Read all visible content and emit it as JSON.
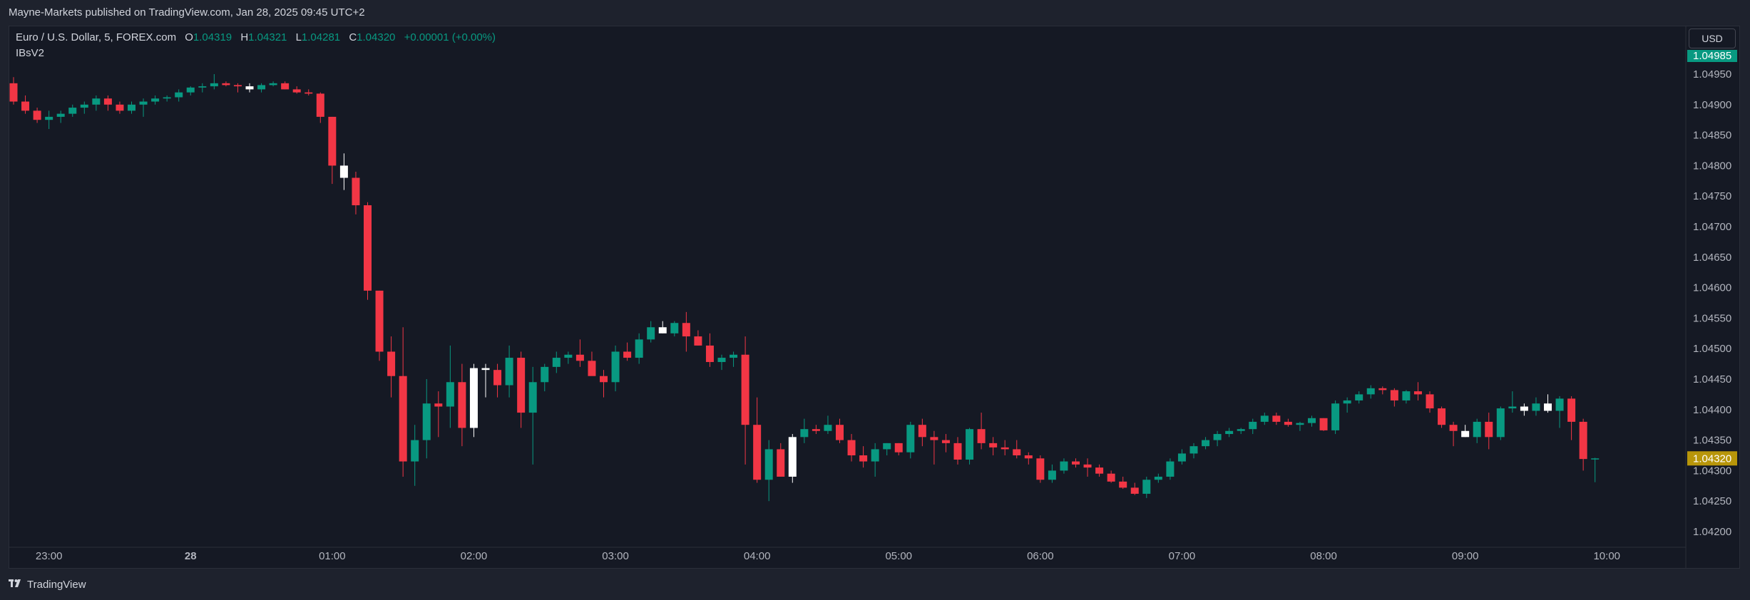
{
  "header": {
    "published": "Mayne-Markets published on TradingView.com, Jan 28, 2025 09:45 UTC+2"
  },
  "legend": {
    "symbol": "Euro / U.S. Dollar, 5, FOREX.com",
    "open_label": "O",
    "open": "1.04319",
    "high_label": "H",
    "high": "1.04321",
    "low_label": "L",
    "low": "1.04281",
    "close_label": "C",
    "close": "1.04320",
    "change": "+0.00001 (+0.00%)"
  },
  "indicator": "IBsV2",
  "currency_button": "USD",
  "footer": {
    "brand": "TradingView",
    "brand_icon": "tradingview-logo-icon"
  },
  "colors": {
    "up": "#089981",
    "down": "#f23645",
    "highlight": "#ffffff",
    "last_price_bg": "#b8960a",
    "top_marker_bg": "#089981"
  },
  "chart_data": {
    "type": "candlestick",
    "instrument": "EURUSD",
    "timeframe": "5",
    "ylim": [
      1.0419,
      1.05
    ],
    "y_ticks": [
      "1.04950",
      "1.04900",
      "1.04850",
      "1.04800",
      "1.04750",
      "1.04700",
      "1.04650",
      "1.04600",
      "1.04550",
      "1.04500",
      "1.04450",
      "1.04400",
      "1.04350",
      "1.04300",
      "1.04250",
      "1.04200"
    ],
    "y_tick_values": [
      1.0495,
      1.049,
      1.0485,
      1.048,
      1.0475,
      1.047,
      1.0465,
      1.046,
      1.0455,
      1.045,
      1.0445,
      1.044,
      1.0435,
      1.043,
      1.0425,
      1.042
    ],
    "x_ticks": [
      "23:00",
      "28",
      "01:00",
      "02:00",
      "03:00",
      "04:00",
      "05:00",
      "06:00",
      "07:00",
      "08:00",
      "09:00",
      "10:00"
    ],
    "x_tick_bar_index": [
      3,
      15,
      27,
      39,
      51,
      63,
      75,
      87,
      99,
      111,
      123,
      135
    ],
    "last_price_label": "1.04320",
    "top_marker_label": "1.04985",
    "candles": [
      {
        "o": 1.04935,
        "h": 1.04945,
        "l": 1.049,
        "c": 1.04905
      },
      {
        "o": 1.04905,
        "h": 1.04915,
        "l": 1.04885,
        "c": 1.0489
      },
      {
        "o": 1.0489,
        "h": 1.04895,
        "l": 1.0487,
        "c": 1.04875
      },
      {
        "o": 1.04875,
        "h": 1.0489,
        "l": 1.0486,
        "c": 1.0488
      },
      {
        "o": 1.0488,
        "h": 1.0489,
        "l": 1.0487,
        "c": 1.04885
      },
      {
        "o": 1.04885,
        "h": 1.049,
        "l": 1.0488,
        "c": 1.04895
      },
      {
        "o": 1.04895,
        "h": 1.04905,
        "l": 1.04885,
        "c": 1.049
      },
      {
        "o": 1.049,
        "h": 1.04915,
        "l": 1.0489,
        "c": 1.0491
      },
      {
        "o": 1.0491,
        "h": 1.04915,
        "l": 1.0489,
        "c": 1.049
      },
      {
        "o": 1.049,
        "h": 1.04905,
        "l": 1.04885,
        "c": 1.0489
      },
      {
        "o": 1.0489,
        "h": 1.04905,
        "l": 1.04885,
        "c": 1.049
      },
      {
        "o": 1.049,
        "h": 1.0491,
        "l": 1.0488,
        "c": 1.04905
      },
      {
        "o": 1.04905,
        "h": 1.04915,
        "l": 1.049,
        "c": 1.0491
      },
      {
        "o": 1.0491,
        "h": 1.04915,
        "l": 1.04905,
        "c": 1.04912
      },
      {
        "o": 1.04912,
        "h": 1.04925,
        "l": 1.04905,
        "c": 1.0492
      },
      {
        "o": 1.0492,
        "h": 1.0493,
        "l": 1.04915,
        "c": 1.04928
      },
      {
        "o": 1.04928,
        "h": 1.04935,
        "l": 1.0492,
        "c": 1.0493
      },
      {
        "o": 1.0493,
        "h": 1.0495,
        "l": 1.04925,
        "c": 1.04935
      },
      {
        "o": 1.04935,
        "h": 1.04938,
        "l": 1.0493,
        "c": 1.04932
      },
      {
        "o": 1.04932,
        "h": 1.04935,
        "l": 1.0492,
        "c": 1.0493
      },
      {
        "o": 1.0493,
        "h": 1.04935,
        "l": 1.0492,
        "c": 1.04925,
        "hl": true
      },
      {
        "o": 1.04925,
        "h": 1.04935,
        "l": 1.0492,
        "c": 1.04932
      },
      {
        "o": 1.04932,
        "h": 1.04938,
        "l": 1.0493,
        "c": 1.04935
      },
      {
        "o": 1.04935,
        "h": 1.04938,
        "l": 1.04925,
        "c": 1.04925
      },
      {
        "o": 1.04925,
        "h": 1.0493,
        "l": 1.04918,
        "c": 1.0492
      },
      {
        "o": 1.0492,
        "h": 1.04925,
        "l": 1.04915,
        "c": 1.04918
      },
      {
        "o": 1.04918,
        "h": 1.0492,
        "l": 1.0487,
        "c": 1.0488
      },
      {
        "o": 1.0488,
        "h": 1.0488,
        "l": 1.0477,
        "c": 1.048
      },
      {
        "o": 1.048,
        "h": 1.0482,
        "l": 1.0476,
        "c": 1.0478,
        "hl": true
      },
      {
        "o": 1.0478,
        "h": 1.0479,
        "l": 1.0472,
        "c": 1.04735
      },
      {
        "o": 1.04735,
        "h": 1.0474,
        "l": 1.0458,
        "c": 1.04595
      },
      {
        "o": 1.04595,
        "h": 1.04595,
        "l": 1.0448,
        "c": 1.04495
      },
      {
        "o": 1.04495,
        "h": 1.0452,
        "l": 1.0442,
        "c": 1.04455
      },
      {
        "o": 1.04455,
        "h": 1.04535,
        "l": 1.0429,
        "c": 1.04315
      },
      {
        "o": 1.04315,
        "h": 1.04375,
        "l": 1.04275,
        "c": 1.0435
      },
      {
        "o": 1.0435,
        "h": 1.0445,
        "l": 1.0432,
        "c": 1.0441
      },
      {
        "o": 1.0441,
        "h": 1.0443,
        "l": 1.04355,
        "c": 1.04405
      },
      {
        "o": 1.04405,
        "h": 1.04505,
        "l": 1.0437,
        "c": 1.04445
      },
      {
        "o": 1.04445,
        "h": 1.04475,
        "l": 1.0434,
        "c": 1.0437
      },
      {
        "o": 1.0437,
        "h": 1.04475,
        "l": 1.04355,
        "c": 1.04468,
        "hl": true
      },
      {
        "o": 1.04468,
        "h": 1.04475,
        "l": 1.0442,
        "c": 1.04465,
        "hl": true
      },
      {
        "o": 1.04465,
        "h": 1.04475,
        "l": 1.0442,
        "c": 1.0444
      },
      {
        "o": 1.0444,
        "h": 1.04505,
        "l": 1.0442,
        "c": 1.04485
      },
      {
        "o": 1.04485,
        "h": 1.04495,
        "l": 1.0437,
        "c": 1.04395
      },
      {
        "o": 1.04395,
        "h": 1.0447,
        "l": 1.0431,
        "c": 1.04445
      },
      {
        "o": 1.04445,
        "h": 1.04475,
        "l": 1.0443,
        "c": 1.0447
      },
      {
        "o": 1.0447,
        "h": 1.04495,
        "l": 1.0446,
        "c": 1.04485
      },
      {
        "o": 1.04485,
        "h": 1.04495,
        "l": 1.04475,
        "c": 1.0449
      },
      {
        "o": 1.0449,
        "h": 1.04515,
        "l": 1.0447,
        "c": 1.0448
      },
      {
        "o": 1.0448,
        "h": 1.04495,
        "l": 1.0446,
        "c": 1.04455
      },
      {
        "o": 1.04455,
        "h": 1.04465,
        "l": 1.0442,
        "c": 1.04445
      },
      {
        "o": 1.04445,
        "h": 1.04505,
        "l": 1.0443,
        "c": 1.04495
      },
      {
        "o": 1.04495,
        "h": 1.0451,
        "l": 1.0448,
        "c": 1.04485
      },
      {
        "o": 1.04485,
        "h": 1.04525,
        "l": 1.04475,
        "c": 1.04515
      },
      {
        "o": 1.04515,
        "h": 1.04545,
        "l": 1.0451,
        "c": 1.04535
      },
      {
        "o": 1.04535,
        "h": 1.04545,
        "l": 1.04525,
        "c": 1.04525,
        "hl": true
      },
      {
        "o": 1.04525,
        "h": 1.04545,
        "l": 1.0452,
        "c": 1.04542
      },
      {
        "o": 1.04542,
        "h": 1.0456,
        "l": 1.04495,
        "c": 1.0452
      },
      {
        "o": 1.0452,
        "h": 1.0453,
        "l": 1.04505,
        "c": 1.04505
      },
      {
        "o": 1.04505,
        "h": 1.04525,
        "l": 1.0447,
        "c": 1.04478
      },
      {
        "o": 1.04478,
        "h": 1.0449,
        "l": 1.04465,
        "c": 1.04485
      },
      {
        "o": 1.04485,
        "h": 1.04495,
        "l": 1.0447,
        "c": 1.0449
      },
      {
        "o": 1.0449,
        "h": 1.0452,
        "l": 1.0431,
        "c": 1.04375
      },
      {
        "o": 1.04375,
        "h": 1.0442,
        "l": 1.0428,
        "c": 1.04285
      },
      {
        "o": 1.04285,
        "h": 1.0435,
        "l": 1.0425,
        "c": 1.04335
      },
      {
        "o": 1.04335,
        "h": 1.04345,
        "l": 1.0429,
        "c": 1.0429
      },
      {
        "o": 1.0429,
        "h": 1.0436,
        "l": 1.0428,
        "c": 1.04355,
        "hl": true
      },
      {
        "o": 1.04355,
        "h": 1.04385,
        "l": 1.04345,
        "c": 1.04368
      },
      {
        "o": 1.04368,
        "h": 1.04375,
        "l": 1.0436,
        "c": 1.04365
      },
      {
        "o": 1.04365,
        "h": 1.0439,
        "l": 1.0436,
        "c": 1.04375
      },
      {
        "o": 1.04375,
        "h": 1.04385,
        "l": 1.04345,
        "c": 1.0435
      },
      {
        "o": 1.0435,
        "h": 1.0436,
        "l": 1.04315,
        "c": 1.04325
      },
      {
        "o": 1.04325,
        "h": 1.0434,
        "l": 1.04305,
        "c": 1.04315
      },
      {
        "o": 1.04315,
        "h": 1.04345,
        "l": 1.0429,
        "c": 1.04335
      },
      {
        "o": 1.04335,
        "h": 1.04345,
        "l": 1.04325,
        "c": 1.04345
      },
      {
        "o": 1.04345,
        "h": 1.04345,
        "l": 1.04325,
        "c": 1.0433
      },
      {
        "o": 1.0433,
        "h": 1.0438,
        "l": 1.0432,
        "c": 1.04375
      },
      {
        "o": 1.04375,
        "h": 1.04385,
        "l": 1.0434,
        "c": 1.04355
      },
      {
        "o": 1.04355,
        "h": 1.04365,
        "l": 1.0431,
        "c": 1.0435
      },
      {
        "o": 1.0435,
        "h": 1.0436,
        "l": 1.0433,
        "c": 1.04345
      },
      {
        "o": 1.04345,
        "h": 1.04355,
        "l": 1.0431,
        "c": 1.04318
      },
      {
        "o": 1.04318,
        "h": 1.0437,
        "l": 1.0431,
        "c": 1.04368
      },
      {
        "o": 1.04368,
        "h": 1.04395,
        "l": 1.04335,
        "c": 1.04345
      },
      {
        "o": 1.04345,
        "h": 1.04355,
        "l": 1.04325,
        "c": 1.04338
      },
      {
        "o": 1.04338,
        "h": 1.0435,
        "l": 1.04325,
        "c": 1.04335
      },
      {
        "o": 1.04335,
        "h": 1.0435,
        "l": 1.0432,
        "c": 1.04325
      },
      {
        "o": 1.04325,
        "h": 1.0433,
        "l": 1.0431,
        "c": 1.0432
      },
      {
        "o": 1.0432,
        "h": 1.04325,
        "l": 1.0428,
        "c": 1.04285
      },
      {
        "o": 1.04285,
        "h": 1.0431,
        "l": 1.0428,
        "c": 1.043
      },
      {
        "o": 1.043,
        "h": 1.0432,
        "l": 1.04295,
        "c": 1.04315
      },
      {
        "o": 1.04315,
        "h": 1.0432,
        "l": 1.04305,
        "c": 1.0431
      },
      {
        "o": 1.0431,
        "h": 1.0432,
        "l": 1.0429,
        "c": 1.04305
      },
      {
        "o": 1.04305,
        "h": 1.0431,
        "l": 1.0429,
        "c": 1.04295
      },
      {
        "o": 1.04295,
        "h": 1.043,
        "l": 1.0428,
        "c": 1.04282
      },
      {
        "o": 1.04282,
        "h": 1.0429,
        "l": 1.0427,
        "c": 1.04272
      },
      {
        "o": 1.04272,
        "h": 1.0428,
        "l": 1.0426,
        "c": 1.04262
      },
      {
        "o": 1.04262,
        "h": 1.0429,
        "l": 1.04255,
        "c": 1.04285
      },
      {
        "o": 1.04285,
        "h": 1.04295,
        "l": 1.0428,
        "c": 1.0429
      },
      {
        "o": 1.0429,
        "h": 1.0432,
        "l": 1.04285,
        "c": 1.04315
      },
      {
        "o": 1.04315,
        "h": 1.04335,
        "l": 1.0431,
        "c": 1.04328
      },
      {
        "o": 1.04328,
        "h": 1.04345,
        "l": 1.0432,
        "c": 1.0434
      },
      {
        "o": 1.0434,
        "h": 1.04355,
        "l": 1.04335,
        "c": 1.0435
      },
      {
        "o": 1.0435,
        "h": 1.04365,
        "l": 1.0434,
        "c": 1.0436
      },
      {
        "o": 1.0436,
        "h": 1.0437,
        "l": 1.04355,
        "c": 1.04365
      },
      {
        "o": 1.04365,
        "h": 1.0437,
        "l": 1.0436,
        "c": 1.04368
      },
      {
        "o": 1.04368,
        "h": 1.04385,
        "l": 1.0436,
        "c": 1.0438
      },
      {
        "o": 1.0438,
        "h": 1.04395,
        "l": 1.04375,
        "c": 1.0439
      },
      {
        "o": 1.0439,
        "h": 1.04395,
        "l": 1.04375,
        "c": 1.0438
      },
      {
        "o": 1.0438,
        "h": 1.04385,
        "l": 1.04372,
        "c": 1.04375
      },
      {
        "o": 1.04375,
        "h": 1.0438,
        "l": 1.04365,
        "c": 1.04378
      },
      {
        "o": 1.04378,
        "h": 1.0439,
        "l": 1.04372,
        "c": 1.04386
      },
      {
        "o": 1.04386,
        "h": 1.04386,
        "l": 1.04365,
        "c": 1.04366
      },
      {
        "o": 1.04366,
        "h": 1.04415,
        "l": 1.0436,
        "c": 1.0441
      },
      {
        "o": 1.0441,
        "h": 1.0442,
        "l": 1.04395,
        "c": 1.04415
      },
      {
        "o": 1.04415,
        "h": 1.0443,
        "l": 1.0441,
        "c": 1.04425
      },
      {
        "o": 1.04425,
        "h": 1.0444,
        "l": 1.04418,
        "c": 1.04435
      },
      {
        "o": 1.04435,
        "h": 1.04438,
        "l": 1.04425,
        "c": 1.04432
      },
      {
        "o": 1.04432,
        "h": 1.04435,
        "l": 1.04405,
        "c": 1.04415
      },
      {
        "o": 1.04415,
        "h": 1.04432,
        "l": 1.0441,
        "c": 1.0443
      },
      {
        "o": 1.0443,
        "h": 1.04445,
        "l": 1.04415,
        "c": 1.04425
      },
      {
        "o": 1.04425,
        "h": 1.0443,
        "l": 1.04395,
        "c": 1.04402
      },
      {
        "o": 1.04402,
        "h": 1.04405,
        "l": 1.0437,
        "c": 1.04375
      },
      {
        "o": 1.04375,
        "h": 1.0438,
        "l": 1.0434,
        "c": 1.04365
      },
      {
        "o": 1.04365,
        "h": 1.04375,
        "l": 1.04355,
        "c": 1.04355,
        "hl": true
      },
      {
        "o": 1.04355,
        "h": 1.04385,
        "l": 1.04345,
        "c": 1.0438
      },
      {
        "o": 1.0438,
        "h": 1.04395,
        "l": 1.04335,
        "c": 1.04355
      },
      {
        "o": 1.04355,
        "h": 1.04405,
        "l": 1.0435,
        "c": 1.04402
      },
      {
        "o": 1.04402,
        "h": 1.0443,
        "l": 1.04395,
        "c": 1.04405
      },
      {
        "o": 1.04405,
        "h": 1.0441,
        "l": 1.0439,
        "c": 1.04398,
        "hl": true
      },
      {
        "o": 1.04398,
        "h": 1.0442,
        "l": 1.0439,
        "c": 1.0441
      },
      {
        "o": 1.0441,
        "h": 1.04425,
        "l": 1.04395,
        "c": 1.04398,
        "hl": true
      },
      {
        "o": 1.04398,
        "h": 1.04422,
        "l": 1.0437,
        "c": 1.04418
      },
      {
        "o": 1.04418,
        "h": 1.04422,
        "l": 1.0435,
        "c": 1.0438
      },
      {
        "o": 1.0438,
        "h": 1.04385,
        "l": 1.043,
        "c": 1.04319
      },
      {
        "o": 1.04319,
        "h": 1.04321,
        "l": 1.04281,
        "c": 1.0432
      }
    ]
  }
}
